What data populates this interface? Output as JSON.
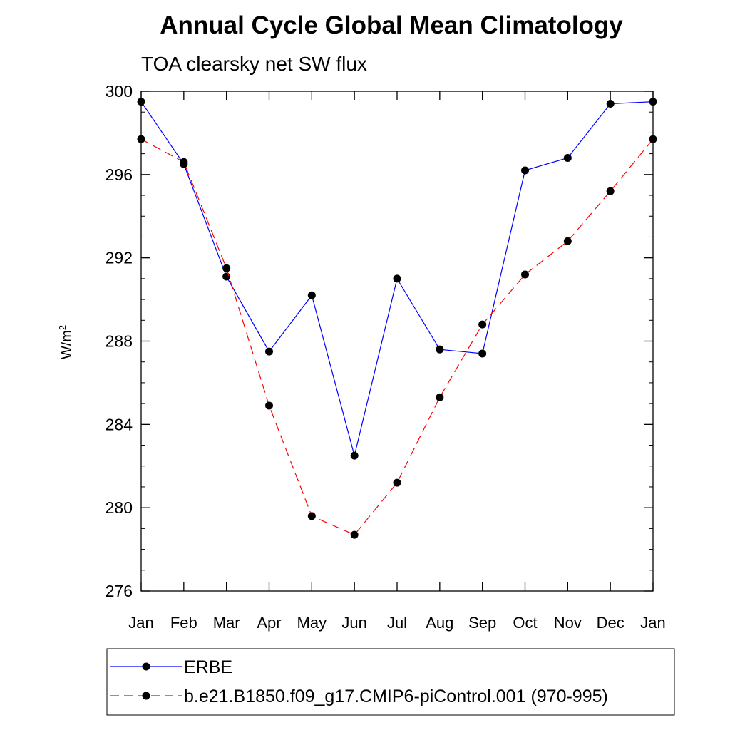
{
  "chart_data": {
    "type": "line",
    "title": "Annual Cycle Global Mean Climatology",
    "subtitle": "TOA clearsky net SW flux",
    "ylabel": "W/m",
    "ylabel_superscript": "2",
    "xlabel": "",
    "categories": [
      "Jan",
      "Feb",
      "Mar",
      "Apr",
      "May",
      "Jun",
      "Jul",
      "Aug",
      "Sep",
      "Oct",
      "Nov",
      "Dec",
      "Jan"
    ],
    "ylim": [
      276,
      300
    ],
    "yticks": [
      276,
      280,
      284,
      288,
      292,
      296,
      300
    ],
    "y_minor_step": 1,
    "grid": false,
    "legend_position": "bottom",
    "series": [
      {
        "name": "ERBE",
        "color": "#0000ff",
        "line_style": "solid",
        "marker": "circle",
        "values": [
          299.5,
          296.5,
          291.1,
          287.5,
          290.2,
          282.5,
          291.0,
          287.6,
          287.4,
          296.2,
          296.8,
          299.4,
          299.5
        ]
      },
      {
        "name": "b.e21.B1850.f09_g17.CMIP6-piControl.001 (970-995)",
        "color": "#ff0000",
        "line_style": "dashed",
        "marker": "circle",
        "values": [
          297.7,
          296.6,
          291.5,
          284.9,
          279.6,
          278.7,
          281.2,
          285.3,
          288.8,
          291.2,
          292.8,
          295.2,
          297.7
        ]
      }
    ]
  }
}
